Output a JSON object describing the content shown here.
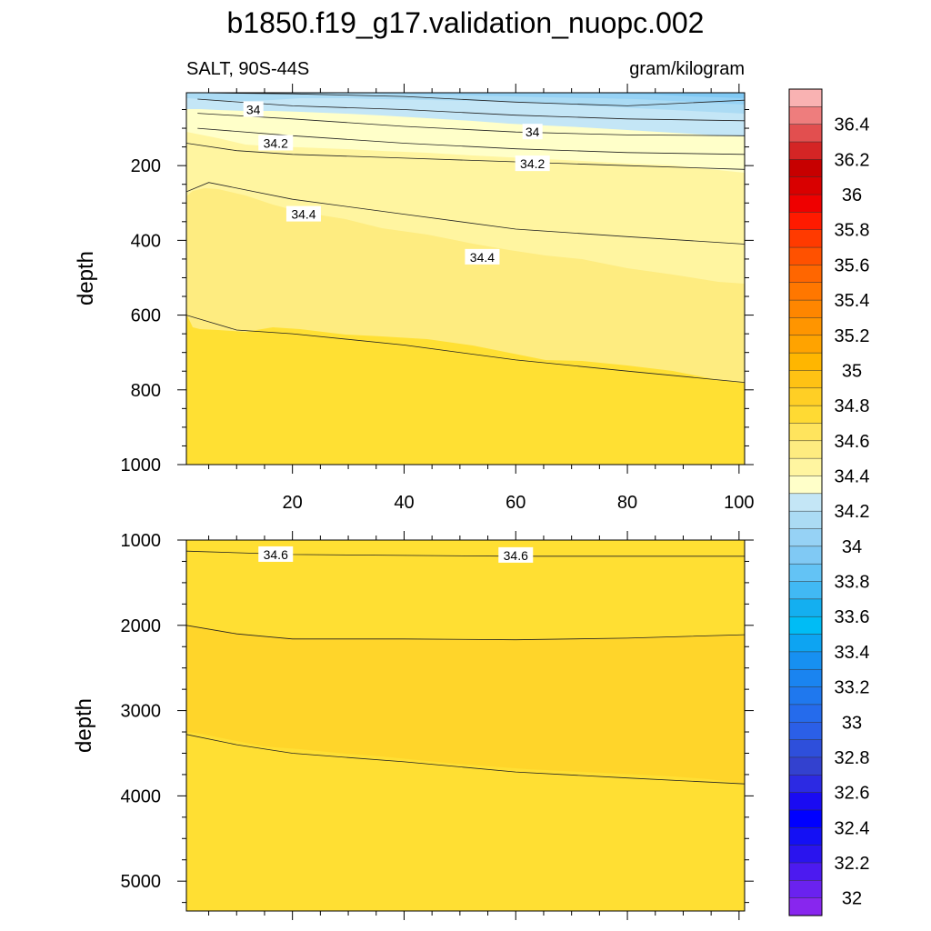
{
  "chart_data": {
    "type": "contour",
    "title": "b1850.f19_g17.validation_nuopc.002",
    "variable_label": "SALT, 90S-44S",
    "units_label": "gram/kilogram",
    "ylabel": "depth",
    "panels": [
      {
        "name": "upper",
        "xlim": [
          1,
          101
        ],
        "ylim": [
          1000,
          5
        ],
        "x_ticks": [
          20,
          40,
          60,
          80,
          100
        ],
        "x_tick_labels": [
          "20",
          "40",
          "60",
          "80",
          "100"
        ],
        "y_ticks": [
          200,
          400,
          600,
          800,
          1000
        ],
        "y_tick_labels": [
          "200",
          "400",
          "600",
          "800",
          "1000"
        ],
        "contours": [
          {
            "level": 33.8,
            "x": [
              3,
              20,
              40,
              60,
              80,
              101
            ],
            "y": [
              5,
              8,
              15,
              30,
              40,
              25
            ]
          },
          {
            "level": 33.9,
            "x": [
              3,
              20,
              40,
              60,
              80,
              101
            ],
            "y": [
              22,
              40,
              50,
              65,
              75,
              80
            ]
          },
          {
            "level": 34.0,
            "x": [
              3,
              20,
              40,
              60,
              80,
              101
            ],
            "y": [
              60,
              75,
              95,
              110,
              118,
              120
            ]
          },
          {
            "level": 34.1,
            "x": [
              3,
              20,
              40,
              60,
              80,
              101
            ],
            "y": [
              100,
              120,
              140,
              155,
              165,
              170
            ]
          },
          {
            "level": 34.2,
            "x": [
              1,
              10,
              20,
              40,
              60,
              80,
              101
            ],
            "y": [
              140,
              160,
              170,
              180,
              190,
              200,
              210
            ]
          },
          {
            "level": 34.3,
            "x": [
              1,
              5,
              20,
              40,
              60,
              80,
              101
            ],
            "y": [
              270,
              245,
              290,
              330,
              370,
              390,
              410
            ]
          },
          {
            "level": 34.4,
            "x": [
              1,
              10,
              20,
              40,
              60,
              80,
              101
            ],
            "y": [
              600,
              640,
              650,
              680,
              720,
              750,
              780
            ]
          }
        ],
        "line_labels": [
          {
            "text": "34",
            "x": 13,
            "y": 50
          },
          {
            "text": "34",
            "x": 63,
            "y": 110
          },
          {
            "text": "34.2",
            "x": 17,
            "y": 140
          },
          {
            "text": "34.2",
            "x": 63,
            "y": 195
          },
          {
            "text": "34.4",
            "x": 22,
            "y": 330
          },
          {
            "text": "34.4",
            "x": 54,
            "y": 445
          }
        ]
      },
      {
        "name": "lower",
        "xlim": [
          1,
          101
        ],
        "ylim": [
          5350,
          1000
        ],
        "x_ticks": [
          20,
          40,
          60,
          80,
          100
        ],
        "x_tick_labels": [],
        "y_ticks": [
          1000,
          2000,
          3000,
          4000,
          5000
        ],
        "y_tick_labels": [
          "1000",
          "2000",
          "3000",
          "4000",
          "5000"
        ],
        "contours": [
          {
            "level": 34.6,
            "x": [
              1,
              20,
              40,
              60,
              80,
              101
            ],
            "y": [
              1130,
              1170,
              1180,
              1190,
              1190,
              1190
            ]
          },
          {
            "level": 34.7,
            "x": [
              1,
              10,
              20,
              40,
              60,
              80,
              101
            ],
            "y": [
              2000,
              2100,
              2160,
              2160,
              2170,
              2150,
              2110
            ]
          },
          {
            "level": 34.7,
            "x": [
              1,
              10,
              20,
              40,
              60,
              80,
              101
            ],
            "y": [
              3280,
              3400,
              3500,
              3600,
              3720,
              3790,
              3860
            ]
          }
        ],
        "line_labels": [
          {
            "text": "34.6",
            "x": 17,
            "y": 1170
          },
          {
            "text": "34.6",
            "x": 60,
            "y": 1180
          }
        ]
      }
    ],
    "colorbar": {
      "labels": [
        "36.4",
        "36.2",
        "36",
        "35.8",
        "35.6",
        "35.4",
        "35.2",
        "35",
        "34.8",
        "34.6",
        "34.4",
        "34.2",
        "34",
        "33.8",
        "33.6",
        "33.4",
        "33.2",
        "33",
        "32.8",
        "32.6",
        "32.4",
        "32.2",
        "32"
      ],
      "colors": [
        "#F9B2B2",
        "#EE7D7D",
        "#E24F4F",
        "#D42525",
        "#C70000",
        "#D90000",
        "#EF0000",
        "#FF1A00",
        "#FF3A00",
        "#FF5100",
        "#FF6600",
        "#FF7700",
        "#FF8600",
        "#FF9500",
        "#FFA300",
        "#FFB600",
        "#FFC214",
        "#FFCF25",
        "#FFDA33",
        "#FFE45D",
        "#FEEC80",
        "#FFF5A0",
        "#FFFFC9",
        "#C4E6F6",
        "#ABDBF4",
        "#96D2F5",
        "#80C9F4",
        "#63C3F5",
        "#41B9F4",
        "#14AFF0",
        "#00BCF5",
        "#0DA4F2",
        "#1790F1",
        "#1A84F0",
        "#1F78EE",
        "#256BEC",
        "#2B5FE7",
        "#2E4FDB",
        "#3341CF",
        "#2C2AE3",
        "#1A0BF2",
        "#0000FF",
        "#1410F4",
        "#2A14EE",
        "#4C1AF0",
        "#6A22EF",
        "#8826EE"
      ]
    }
  }
}
